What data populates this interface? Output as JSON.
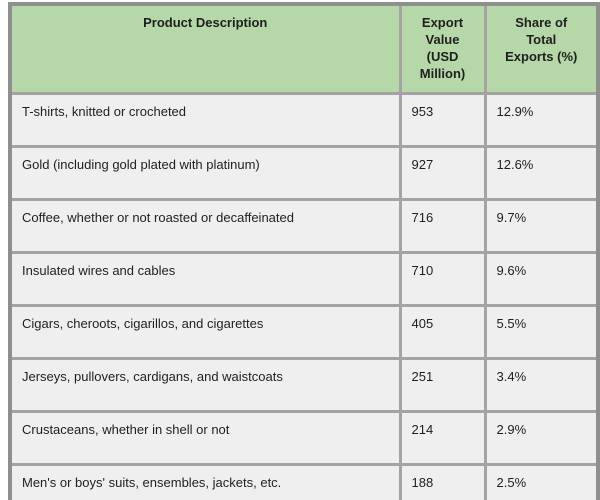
{
  "colors": {
    "header_bg": "#b6d7a8",
    "row_bg": "#efefef",
    "border": "#a3a3a3",
    "outer_border": "#8f8f8f",
    "text": "#1f1f1f"
  },
  "table_display": {
    "header_lines": [
      "Product Description",
      "Export\nValue\n(USD\nMillion)",
      "Share of\nTotal\nExports (%)"
    ]
  },
  "chart_data": {
    "type": "table",
    "title": "",
    "columns": [
      "Product Description",
      "Export Value (USD Million)",
      "Share of Total Exports (%)"
    ],
    "rows": [
      [
        "T-shirts, knitted or crocheted",
        953,
        "12.9%"
      ],
      [
        "Gold (including gold plated with platinum)",
        927,
        "12.6%"
      ],
      [
        "Coffee, whether or not roasted or decaffeinated",
        716,
        "9.7%"
      ],
      [
        "Insulated wires and cables",
        710,
        "9.6%"
      ],
      [
        "Cigars, cheroots, cigarillos, and cigarettes",
        405,
        "5.5%"
      ],
      [
        "Jerseys, pullovers, cardigans, and waistcoats",
        251,
        "3.4%"
      ],
      [
        "Crustaceans, whether in shell or not",
        214,
        "2.9%"
      ],
      [
        "Men's or boys' suits, ensembles, jackets, etc.",
        188,
        "2.5%"
      ]
    ]
  }
}
